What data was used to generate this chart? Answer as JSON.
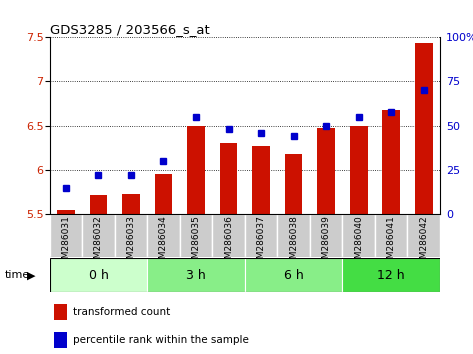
{
  "title": "GDS3285 / 203566_s_at",
  "samples": [
    "GSM286031",
    "GSM286032",
    "GSM286033",
    "GSM286034",
    "GSM286035",
    "GSM286036",
    "GSM286037",
    "GSM286038",
    "GSM286039",
    "GSM286040",
    "GSM286041",
    "GSM286042"
  ],
  "transformed_count": [
    5.55,
    5.72,
    5.73,
    5.95,
    6.5,
    6.3,
    6.27,
    6.18,
    6.47,
    6.5,
    6.68,
    7.43
  ],
  "percentile_rank": [
    15,
    22,
    22,
    30,
    55,
    48,
    46,
    44,
    50,
    55,
    58,
    70
  ],
  "bar_color": "#cc1100",
  "dot_color": "#0000cc",
  "ylim_left": [
    5.5,
    7.5
  ],
  "ylim_right": [
    0,
    100
  ],
  "yticks_left": [
    5.5,
    6.0,
    6.5,
    7.0,
    7.5
  ],
  "yticks_right": [
    0,
    25,
    50,
    75,
    100
  ],
  "ytick_labels_left": [
    "5.5",
    "6",
    "6.5",
    "7",
    "7.5"
  ],
  "ytick_labels_right": [
    "0",
    "25",
    "50",
    "75",
    "100%"
  ],
  "time_groups": [
    {
      "label": "0 h",
      "start": 0,
      "end": 3,
      "color": "#ccffcc"
    },
    {
      "label": "3 h",
      "start": 3,
      "end": 6,
      "color": "#88ee88"
    },
    {
      "label": "6 h",
      "start": 6,
      "end": 9,
      "color": "#88ee88"
    },
    {
      "label": "12 h",
      "start": 9,
      "end": 12,
      "color": "#44dd44"
    }
  ],
  "legend_bar_label": "transformed count",
  "legend_dot_label": "percentile rank within the sample",
  "time_label": "time",
  "grid_color": "#000000",
  "tick_label_color_left": "#cc2200",
  "tick_label_color_right": "#0000cc",
  "xtick_bg_color": "#cccccc",
  "xtick_border_color": "#ffffff"
}
